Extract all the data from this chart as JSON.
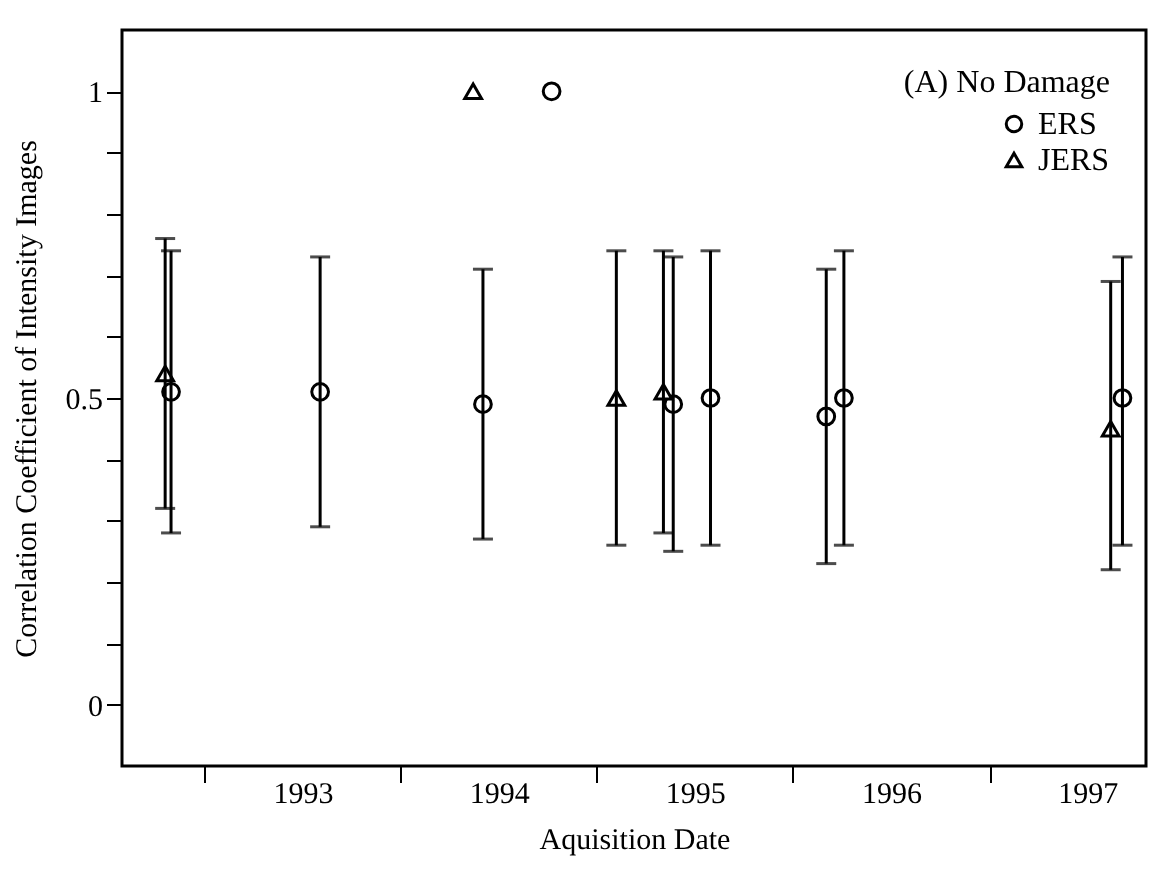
{
  "chart_data": {
    "type": "scatter",
    "xlabel": "Aquisition Date",
    "ylabel": "Correlation Coefficient of Intensity Images",
    "legend_title": "(A) No Damage",
    "legend": "top right",
    "grid": false,
    "xlim": [
      1992.58,
      1997.8
    ],
    "ylim": [
      -0.1,
      1.1
    ],
    "xticks": [
      {
        "value": 1993,
        "label": null
      },
      {
        "value": 1993.5,
        "label": "1993"
      },
      {
        "value": 1994,
        "label": null
      },
      {
        "value": 1994.5,
        "label": "1994"
      },
      {
        "value": 1995,
        "label": null
      },
      {
        "value": 1995.5,
        "label": "1995"
      },
      {
        "value": 1996,
        "label": null
      },
      {
        "value": 1996.5,
        "label": "1996"
      },
      {
        "value": 1997,
        "label": null
      },
      {
        "value": 1997.5,
        "label": "1997"
      }
    ],
    "yticks": [
      0,
      {
        "value": 0.1,
        "label": null
      },
      {
        "value": 0.2,
        "label": null
      },
      {
        "value": 0.3,
        "label": null
      },
      {
        "value": 0.4,
        "label": null
      },
      0.5,
      {
        "value": 0.6,
        "label": null
      },
      {
        "value": 0.7,
        "label": null
      },
      {
        "value": 0.8,
        "label": null
      },
      {
        "value": 0.9,
        "label": null
      },
      1
    ],
    "series": [
      {
        "name": "ERS",
        "color": "#000000",
        "marker": "circle",
        "x": [
          1992.83,
          1993.59,
          1994.42,
          1994.77,
          1995.39,
          1995.58,
          1996.17,
          1996.26,
          1997.68
        ],
        "values": [
          0.51,
          0.51,
          0.49,
          1.0,
          0.49,
          0.5,
          0.47,
          0.5,
          0.5
        ],
        "errors": [
          [
            0.28,
            0.74
          ],
          [
            0.29,
            0.73
          ],
          [
            0.27,
            0.71
          ],
          null,
          [
            0.25,
            0.73
          ],
          [
            0.26,
            0.74
          ],
          [
            0.23,
            0.71
          ],
          [
            0.26,
            0.74
          ],
          [
            0.26,
            0.73
          ]
        ]
      },
      {
        "name": "JERS",
        "color": "#000000",
        "marker": "triangle",
        "x": [
          1992.8,
          1994.37,
          1995.1,
          1995.34,
          1997.62
        ],
        "values": [
          0.54,
          1.0,
          0.5,
          0.51,
          0.45
        ],
        "errors": [
          [
            0.32,
            0.76
          ],
          null,
          [
            0.26,
            0.74
          ],
          [
            0.28,
            0.74
          ],
          [
            0.22,
            0.69
          ]
        ]
      }
    ]
  }
}
